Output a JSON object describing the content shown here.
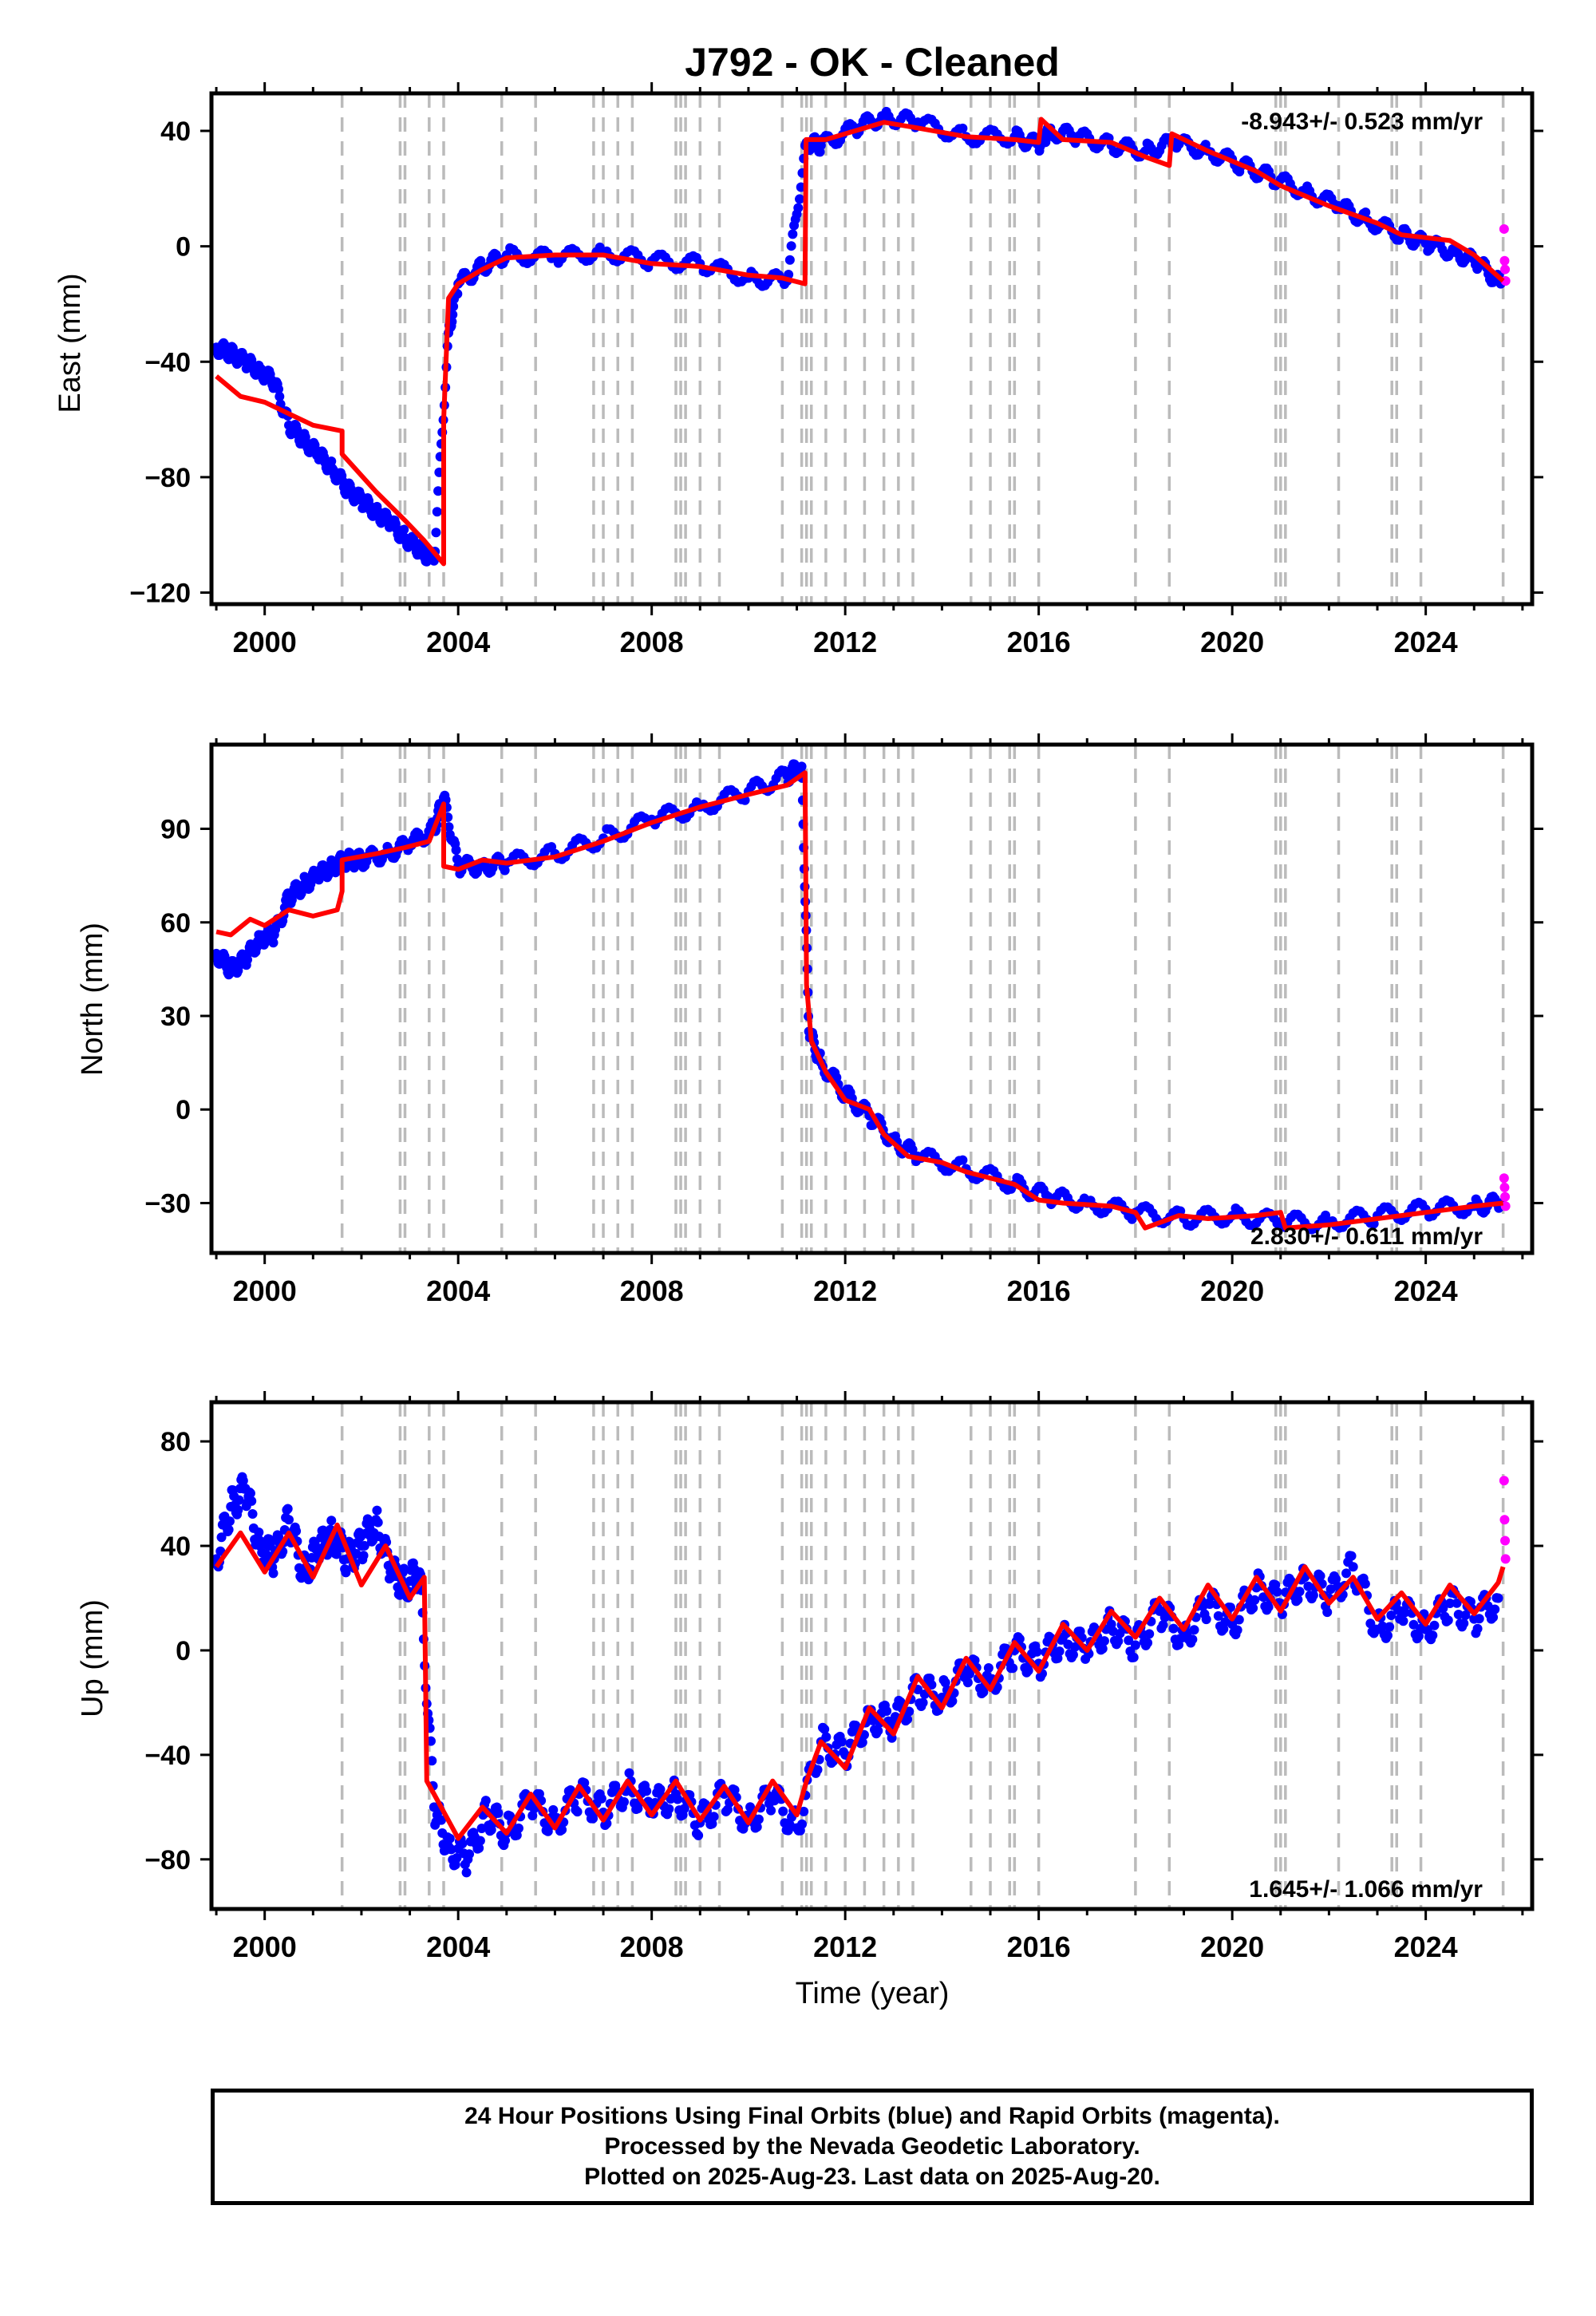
{
  "title": "J792  - OK - Cleaned",
  "colors": {
    "final_orbits": "#0000ff",
    "rapid_orbits": "#ff00ff",
    "model": "#ff0000",
    "event_lines": "#bbbbbb",
    "frame": "#000000"
  },
  "footer": {
    "line1": "24 Hour Positions Using Final Orbits (blue) and Rapid Orbits (magenta).",
    "line2": "Processed by the Nevada Geodetic Laboratory.",
    "line3": "Plotted on 2025-Aug-23. Last data on 2025-Aug-20."
  },
  "chart_data": [
    {
      "type": "scatter",
      "component": "East",
      "ylabel": "East (mm)",
      "xlim": [
        1998.9,
        2026.2
      ],
      "ylim": [
        -124,
        53
      ],
      "yticks": [
        40,
        0,
        -40,
        -80,
        -120
      ],
      "ytick_labels": [
        "40",
        "0",
        "−40",
        "−80",
        "−120"
      ],
      "xticks": [
        2000,
        2004,
        2008,
        2012,
        2016,
        2020,
        2024
      ],
      "grid": false,
      "rate_label": "-8.943+/- 0.523 mm/yr",
      "rate_position": "top-right",
      "model": {
        "x": [
          1999.0,
          1999.5,
          2000.0,
          2000.5,
          2001.0,
          2001.6,
          2001.6,
          2002.3,
          2002.9,
          2003.3,
          2003.7,
          2003.7,
          2003.8,
          2004.0,
          2004.5,
          2005.0,
          2006.0,
          2007.0,
          2008.0,
          2009.0,
          2010.0,
          2010.7,
          2011.17,
          2011.19,
          2011.6,
          2012.2,
          2012.8,
          2013.5,
          2014.5,
          2015.5,
          2016.0,
          2016.05,
          2016.5,
          2017.5,
          2018.2,
          2018.7,
          2018.75,
          2019.5,
          2020.5,
          2021.0,
          2022.0,
          2023.0,
          2023.5,
          2024.5,
          2025.0,
          2025.6
        ],
        "y": [
          -45,
          -52,
          -54,
          -58,
          -62,
          -64,
          -72,
          -85,
          -95,
          -102,
          -110,
          -60,
          -18,
          -13,
          -8,
          -4,
          -3,
          -3,
          -6,
          -7,
          -10,
          -11,
          -13,
          37,
          37,
          40,
          43,
          41,
          38,
          37,
          36,
          44,
          37,
          36,
          31,
          28,
          39,
          33,
          26,
          21,
          14,
          8,
          4,
          2,
          -3,
          -12
        ]
      },
      "series": [
        {
          "name": "Final Orbits",
          "color": "#0000ff",
          "x": [
            1999.0,
            1999.3,
            1999.6,
            1999.9,
            2000.2,
            2000.5,
            2000.8,
            2001.1,
            2001.4,
            2001.7,
            2002.0,
            2002.3,
            2002.6,
            2002.9,
            2003.2,
            2003.5,
            2003.8,
            2004.0,
            2004.5,
            2005.0,
            2006.0,
            2007.0,
            2008.0,
            2009.0,
            2010.0,
            2010.8,
            2011.2,
            2011.5,
            2012.2,
            2012.8,
            2013.5,
            2014.5,
            2015.5,
            2016.0,
            2016.2,
            2016.8,
            2017.5,
            2018.2,
            2018.8,
            2019.5,
            2020.2,
            2020.8,
            2021.5,
            2022.2,
            2022.8,
            2023.5,
            2024.0,
            2024.6,
            2025.1,
            2025.55
          ],
          "y": [
            -35,
            -37,
            -40,
            -43,
            -47,
            -62,
            -67,
            -72,
            -77,
            -84,
            -88,
            -92,
            -96,
            -101,
            -105,
            -109,
            -30,
            -13,
            -7,
            -3,
            -4,
            -2,
            -5,
            -6,
            -11,
            -12,
            36,
            35,
            41,
            45,
            43,
            38,
            38,
            35,
            40,
            38,
            35,
            33,
            36,
            33,
            28,
            24,
            19,
            14,
            9,
            4,
            1,
            -2,
            -6,
            -13
          ]
        },
        {
          "name": "Rapid Orbits",
          "color": "#ff00ff",
          "x": [
            2025.62,
            2025.63,
            2025.64,
            2025.65
          ],
          "y": [
            6,
            -5,
            -8,
            -12
          ]
        }
      ]
    },
    {
      "type": "scatter",
      "component": "North",
      "ylabel": "North (mm)",
      "xlim": [
        1998.9,
        2026.2
      ],
      "ylim": [
        -46,
        117
      ],
      "yticks": [
        90,
        60,
        30,
        0,
        -30
      ],
      "ytick_labels": [
        "90",
        "60",
        "30",
        "0",
        "−30"
      ],
      "xticks": [
        2000,
        2004,
        2008,
        2012,
        2016,
        2020,
        2024
      ],
      "grid": false,
      "rate_label": "2.830+/- 0.611 mm/yr",
      "rate_position": "bottom-right",
      "model": {
        "x": [
          1999.0,
          1999.3,
          1999.7,
          2000.0,
          2000.5,
          2001.0,
          2001.5,
          2001.6,
          2001.6,
          2002.3,
          2002.9,
          2003.4,
          2003.7,
          2003.7,
          2004.0,
          2004.5,
          2005.0,
          2006.0,
          2007.0,
          2008.0,
          2009.0,
          2010.0,
          2010.8,
          2011.17,
          2011.2,
          2011.3,
          2011.6,
          2012.0,
          2012.5,
          2012.8,
          2013.3,
          2014.0,
          2014.5,
          2015.5,
          2016.0,
          2016.5,
          2017.5,
          2018.0,
          2018.2,
          2018.9,
          2019.5,
          2020.5,
          2021.0,
          2021.1,
          2022.0,
          2023.0,
          2024.0,
          2024.5,
          2025.0,
          2025.6
        ],
        "y": [
          57,
          56,
          61,
          59,
          64,
          62,
          64,
          70,
          80,
          82,
          84,
          86,
          98,
          78,
          77,
          80,
          79,
          81,
          86,
          92,
          97,
          101,
          104,
          108,
          40,
          22,
          12,
          3,
          0,
          -8,
          -15,
          -17,
          -20,
          -24,
          -29,
          -30,
          -31,
          -33,
          -38,
          -34,
          -35,
          -34,
          -33,
          -38,
          -37,
          -35,
          -33,
          -32,
          -31,
          -30
        ]
      },
      "series": [
        {
          "name": "Final Orbits",
          "color": "#0000ff",
          "x": [
            1999.0,
            1999.3,
            1999.6,
            1999.9,
            2000.2,
            2000.5,
            2000.8,
            2001.1,
            2001.4,
            2001.7,
            2002.0,
            2002.5,
            2003.0,
            2003.5,
            2003.7,
            2004.0,
            2004.5,
            2005.0,
            2006.0,
            2007.0,
            2008.0,
            2009.0,
            2010.0,
            2010.8,
            2011.1,
            2011.25,
            2011.5,
            2012.0,
            2012.5,
            2013.0,
            2013.5,
            2014.5,
            2015.5,
            2016.2,
            2017.0,
            2018.0,
            2019.0,
            2020.0,
            2021.0,
            2022.0,
            2023.0,
            2024.0,
            2025.0,
            2025.55
          ],
          "y": [
            50,
            45,
            48,
            55,
            56,
            68,
            72,
            75,
            78,
            80,
            80,
            82,
            85,
            90,
            100,
            78,
            78,
            79,
            82,
            87,
            93,
            97,
            102,
            107,
            110,
            25,
            15,
            5,
            -2,
            -10,
            -15,
            -19,
            -24,
            -28,
            -30,
            -33,
            -35,
            -34,
            -36,
            -36,
            -34,
            -32,
            -31,
            -30
          ]
        },
        {
          "name": "Rapid Orbits",
          "color": "#ff00ff",
          "x": [
            2025.62,
            2025.63,
            2025.64,
            2025.65
          ],
          "y": [
            -22,
            -25,
            -28,
            -31
          ]
        }
      ]
    },
    {
      "type": "scatter",
      "component": "Up",
      "ylabel": "Up (mm)",
      "xlabel": "Time (year)",
      "xlim": [
        1998.9,
        2026.2
      ],
      "ylim": [
        -99,
        95
      ],
      "yticks": [
        80,
        40,
        0,
        -40,
        -80
      ],
      "ytick_labels": [
        "80",
        "40",
        "0",
        "−40",
        "−80"
      ],
      "xticks": [
        2000,
        2004,
        2008,
        2012,
        2016,
        2020,
        2024
      ],
      "grid": false,
      "rate_label": "1.645+/- 1.066 mm/yr",
      "rate_position": "bottom-right",
      "model": {
        "x": [
          1999.0,
          1999.5,
          2000.0,
          2000.5,
          2001.0,
          2001.5,
          2002.0,
          2002.5,
          2003.0,
          2003.3,
          2003.35,
          2003.5,
          2004.0,
          2004.5,
          2005.0,
          2005.5,
          2006.0,
          2006.5,
          2007.0,
          2007.5,
          2008.0,
          2008.5,
          2009.0,
          2009.5,
          2010.0,
          2010.5,
          2011.0,
          2011.2,
          2011.5,
          2012.0,
          2012.5,
          2013.0,
          2013.5,
          2014.0,
          2014.5,
          2015.0,
          2015.5,
          2016.0,
          2016.5,
          2017.0,
          2017.5,
          2018.0,
          2018.5,
          2019.0,
          2019.5,
          2020.0,
          2020.5,
          2021.0,
          2021.5,
          2022.0,
          2022.5,
          2023.0,
          2023.5,
          2024.0,
          2024.5,
          2025.0,
          2025.5,
          2025.6
        ],
        "y": [
          32,
          45,
          30,
          45,
          28,
          48,
          25,
          40,
          20,
          28,
          -50,
          -55,
          -72,
          -60,
          -70,
          -55,
          -68,
          -52,
          -65,
          -50,
          -63,
          -50,
          -65,
          -52,
          -66,
          -50,
          -63,
          -50,
          -35,
          -45,
          -22,
          -32,
          -10,
          -22,
          -3,
          -15,
          3,
          -8,
          10,
          0,
          15,
          5,
          20,
          8,
          25,
          12,
          28,
          15,
          32,
          18,
          28,
          12,
          22,
          10,
          25,
          14,
          26,
          32
        ]
      },
      "series": [
        {
          "name": "Final Orbits",
          "color": "#0000ff",
          "x": [
            1999.0,
            1999.3,
            1999.6,
            1999.9,
            2000.2,
            2000.5,
            2000.8,
            2001.1,
            2001.4,
            2001.7,
            2002.0,
            2002.3,
            2002.6,
            2002.9,
            2003.2,
            2003.5,
            2003.8,
            2004.2,
            2004.6,
            2005.0,
            2005.5,
            2006.0,
            2006.5,
            2007.0,
            2007.5,
            2008.0,
            2008.5,
            2009.0,
            2009.5,
            2010.0,
            2010.5,
            2011.0,
            2011.5,
            2012.0,
            2012.5,
            2013.0,
            2013.5,
            2014.0,
            2014.5,
            2015.0,
            2015.5,
            2016.0,
            2016.5,
            2017.0,
            2017.5,
            2018.0,
            2018.5,
            2019.0,
            2019.5,
            2020.0,
            2020.5,
            2021.0,
            2021.5,
            2022.0,
            2022.5,
            2023.0,
            2023.5,
            2024.0,
            2024.5,
            2025.0,
            2025.5
          ],
          "y": [
            35,
            55,
            62,
            40,
            35,
            50,
            30,
            38,
            45,
            35,
            40,
            50,
            30,
            25,
            30,
            -60,
            -75,
            -80,
            -62,
            -70,
            -58,
            -66,
            -55,
            -62,
            -52,
            -60,
            -55,
            -66,
            -55,
            -65,
            -56,
            -68,
            -35,
            -40,
            -25,
            -28,
            -15,
            -18,
            -8,
            -12,
            0,
            -5,
            5,
            0,
            10,
            2,
            15,
            5,
            18,
            10,
            24,
            18,
            28,
            20,
            32,
            8,
            15,
            8,
            18,
            12,
            20
          ]
        },
        {
          "name": "Rapid Orbits",
          "color": "#ff00ff",
          "x": [
            2025.62,
            2025.63,
            2025.64,
            2025.65
          ],
          "y": [
            65,
            50,
            42,
            35
          ]
        }
      ]
    }
  ],
  "event_lines": [
    2001.6,
    2002.8,
    2002.9,
    2003.4,
    2003.7,
    2004.9,
    2005.6,
    2006.8,
    2007.0,
    2007.3,
    2007.6,
    2008.5,
    2008.6,
    2008.7,
    2009.0,
    2009.4,
    2010.7,
    2011.1,
    2011.2,
    2011.3,
    2011.6,
    2012.0,
    2012.4,
    2012.8,
    2013.1,
    2013.4,
    2014.6,
    2015.0,
    2015.4,
    2015.5,
    2016.0,
    2018.0,
    2018.7,
    2020.9,
    2021.0,
    2021.1,
    2022.2,
    2023.3,
    2023.4,
    2023.9,
    2025.6
  ]
}
